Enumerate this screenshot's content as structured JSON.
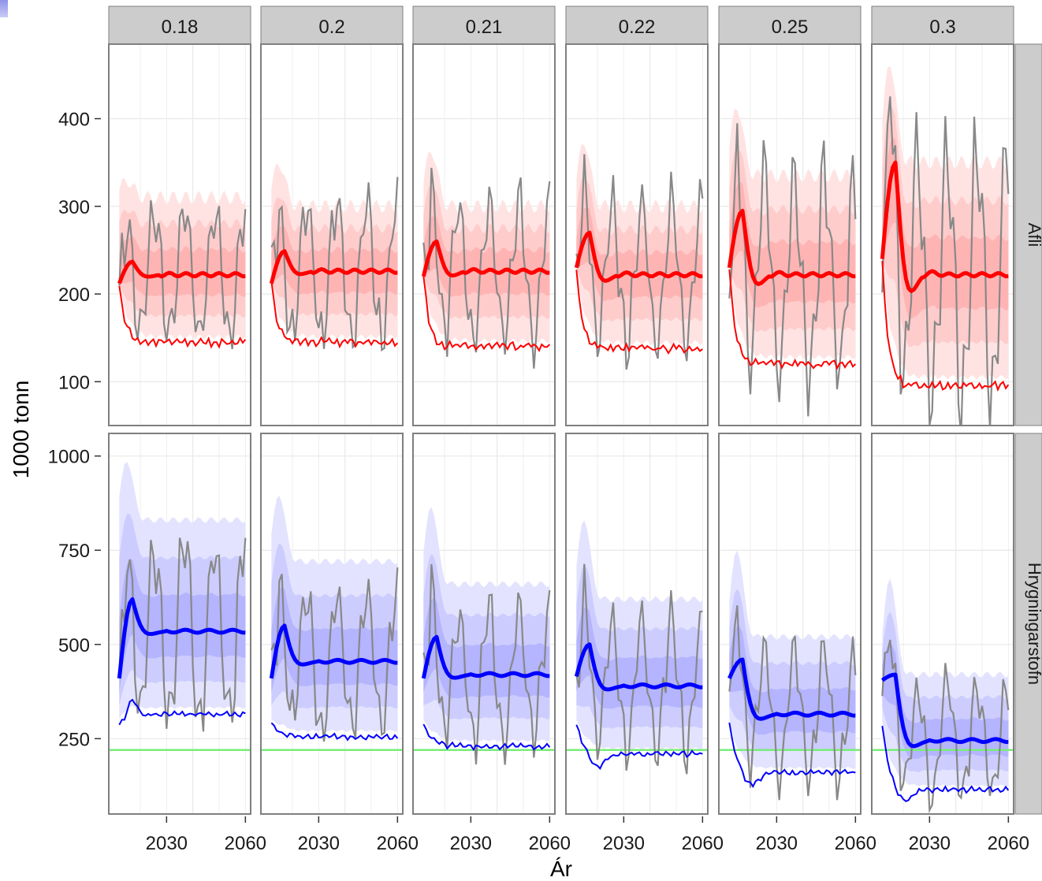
{
  "chart_data": {
    "type": "area",
    "xlabel": "Ár",
    "ylabel": "1000 tonn",
    "x_ticks": [
      2030,
      2060
    ],
    "columns": [
      "0.18",
      "0.2",
      "0.21",
      "0.22",
      "0.25",
      "0.3"
    ],
    "rows": [
      {
        "label": "Afli",
        "color": "#ff0000",
        "y_ticks": [
          100,
          200,
          300,
          400
        ],
        "ylim": [
          50,
          485
        ],
        "median_line": [
          [
            2013,
            212
          ],
          [
            2016,
            225
          ],
          [
            2019,
            236
          ],
          [
            2022,
            232
          ],
          [
            2025,
            222
          ],
          [
            2028,
            219
          ],
          [
            2032,
            222
          ],
          [
            2036,
            221
          ],
          [
            2045,
            222
          ],
          [
            2060,
            221
          ],
          [
            2013,
            212
          ],
          [
            2017,
            243
          ],
          [
            2020,
            248
          ],
          [
            2023,
            232
          ],
          [
            2026,
            222
          ],
          [
            2030,
            226
          ],
          [
            2036,
            226
          ],
          [
            2045,
            226
          ],
          [
            2060,
            224
          ],
          [
            2013,
            220
          ],
          [
            2017,
            255
          ],
          [
            2020,
            254
          ],
          [
            2023,
            233
          ],
          [
            2026,
            223
          ],
          [
            2030,
            228
          ],
          [
            2036,
            227
          ],
          [
            2060,
            225
          ],
          [
            2013,
            230
          ],
          [
            2017,
            262
          ],
          [
            2020,
            258
          ],
          [
            2023,
            234
          ],
          [
            2026,
            222
          ],
          [
            2030,
            228
          ],
          [
            2060,
            225
          ],
          [
            2013,
            230
          ],
          [
            2016,
            283
          ],
          [
            2019,
            267
          ],
          [
            2022,
            230
          ],
          [
            2025,
            217
          ],
          [
            2029,
            228
          ],
          [
            2033,
            230
          ],
          [
            2038,
            226
          ],
          [
            2060,
            225
          ],
          [
            2012,
            240
          ],
          [
            2015,
            330
          ],
          [
            2018,
            280
          ],
          [
            2021,
            200
          ],
          [
            2024,
            215
          ],
          [
            2027,
            228
          ],
          [
            2032,
            224
          ],
          [
            2060,
            222
          ]
        ],
        "lower_line_start": [
          212,
          212,
          220,
          230,
          230,
          240
        ],
        "lower_line_end": [
          145,
          145,
          140,
          138,
          120,
          95
        ],
        "band_peaks": [
          330,
          350,
          365,
          375,
          415,
          465
        ]
      },
      {
        "label": "Hrygningarstofn",
        "color": "#0000ff",
        "y_ticks": [
          250,
          500,
          750,
          1000
        ],
        "ylim": [
          50,
          1060
        ],
        "reference_line": 220,
        "reference_color": "#77ee77",
        "median_end": [
          535,
          455,
          420,
          390,
          315,
          245
        ],
        "median_peak": [
          620,
          550,
          520,
          500,
          460,
          420
        ],
        "lower_line_end": [
          315,
          255,
          230,
          210,
          160,
          115
        ],
        "band_peaks": [
          990,
          900,
          870,
          835,
          755,
          680
        ]
      }
    ]
  }
}
